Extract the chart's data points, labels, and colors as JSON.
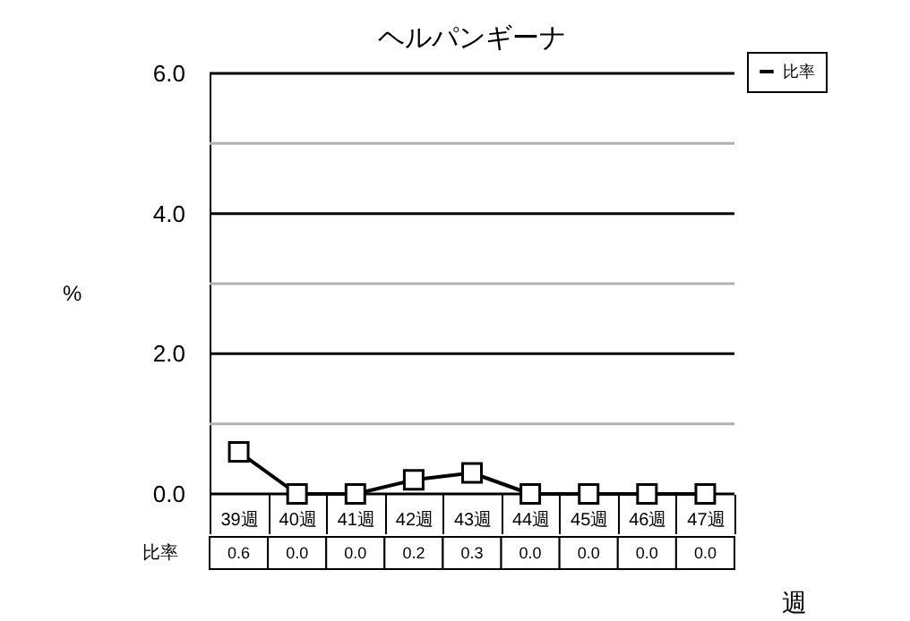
{
  "chart_data": {
    "type": "line",
    "title": "ヘルパンギーナ",
    "xlabel": "週",
    "ylabel": "%",
    "categories": [
      "39週",
      "40週",
      "41週",
      "42週",
      "43週",
      "44週",
      "45週",
      "46週",
      "47週"
    ],
    "series": [
      {
        "name": "比率",
        "color": "#000000",
        "values": [
          0.6,
          0,
          0,
          0.2,
          0.3,
          0,
          0,
          0,
          0
        ],
        "value_labels": [
          "0.6",
          "0.0",
          "0.0",
          "0.2",
          "0.3",
          "0.0",
          "0.0",
          "0.0",
          "0.0"
        ]
      }
    ],
    "ylim": [
      0,
      6
    ],
    "yticks": [
      {
        "value": 0,
        "label": "0.0"
      },
      {
        "value": 1,
        "label": null
      },
      {
        "value": 2,
        "label": "2.0"
      },
      {
        "value": 3,
        "label": null
      },
      {
        "value": 4,
        "label": "4.0"
      },
      {
        "value": 5,
        "label": null
      },
      {
        "value": 6,
        "label": "6.0"
      }
    ],
    "grid": "y",
    "legend": "top right",
    "marker": "square",
    "line_style": "solid"
  }
}
